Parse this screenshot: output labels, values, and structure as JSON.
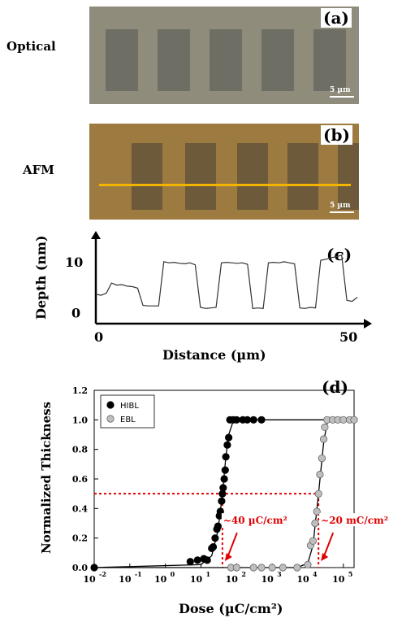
{
  "panels": {
    "a": {
      "tag": "(a)",
      "side_label": "Optical",
      "scale": "5 µm"
    },
    "b": {
      "tag": "(b)",
      "side_label": "AFM",
      "scale": "5 µm"
    },
    "c": {
      "tag": "(c)"
    },
    "d": {
      "tag": "(d)"
    }
  },
  "colors": {
    "optical_bg": "#8f8c7c",
    "optical_square": "#6f6e64",
    "afm_bg": "#9c7a40",
    "afm_square": "#6c5a3a",
    "afm_line": "#f2b400",
    "ebl_red": "#e00000",
    "hibl_fill": "#000000",
    "ebl_fill": "#bfbfbf"
  },
  "chart_data": [
    {
      "type": "line",
      "title": "",
      "xlabel": "Distance (µm)",
      "ylabel": "Depth (nm)",
      "xticks": [
        "0",
        "50"
      ],
      "yticks": [
        "0",
        "10"
      ],
      "xlim": [
        0,
        50
      ],
      "ylim": [
        -2,
        15
      ],
      "x": [
        0,
        1,
        2,
        3,
        4,
        5,
        6,
        7,
        8,
        9,
        10,
        11,
        12,
        13,
        14,
        15,
        16,
        17,
        18,
        19,
        20,
        21,
        22,
        23,
        24,
        25,
        26,
        27,
        28,
        29,
        30,
        31,
        32,
        33,
        34,
        35,
        36,
        37,
        38,
        39,
        40,
        41,
        42,
        43,
        44,
        45,
        46,
        47,
        48,
        49,
        50
      ],
      "series": [
        {
          "values": [
            3.8,
            3.6,
            4.0,
            6.0,
            5.6,
            5.7,
            5.4,
            5.3,
            5.0,
            1.6,
            1.5,
            1.5,
            1.5,
            10.2,
            10.0,
            10.1,
            9.9,
            9.8,
            10.0,
            9.6,
            1.2,
            1.0,
            1.1,
            1.2,
            10.0,
            10.1,
            10.0,
            9.9,
            10.0,
            9.7,
            1.0,
            1.1,
            1.0,
            10.0,
            10.1,
            10.0,
            10.2,
            10.0,
            9.8,
            1.1,
            1.0,
            1.2,
            1.1,
            10.5,
            10.7,
            11.0,
            11.2,
            11.5,
            2.6,
            2.4,
            3.2
          ]
        }
      ]
    },
    {
      "type": "scatter",
      "title": "",
      "xlabel": "Dose (µC/cm²)",
      "ylabel": "Normalized Thickness",
      "x_scale": "log",
      "xlim": [
        0.01,
        200000
      ],
      "ylim": [
        0,
        1.2
      ],
      "xticks": [
        {
          "v": 0.01,
          "b": "10",
          "e": "-2"
        },
        {
          "v": 0.1,
          "b": "10",
          "e": "-1"
        },
        {
          "v": 1,
          "b": "10",
          "e": "0"
        },
        {
          "v": 10,
          "b": "10",
          "e": "1"
        },
        {
          "v": 100,
          "b": "10",
          "e": "2"
        },
        {
          "v": 1000,
          "b": "10",
          "e": "3"
        },
        {
          "v": 10000,
          "b": "10",
          "e": "4"
        },
        {
          "v": 100000,
          "b": "10",
          "e": "5"
        }
      ],
      "yticks": [
        "0.0",
        "0.2",
        "0.4",
        "0.6",
        "0.8",
        "1.0",
        "1.2"
      ],
      "legend_position": "top-left",
      "series": [
        {
          "name": "HIBL",
          "color": "#000000",
          "points": [
            [
              0.01,
              0
            ],
            [
              5,
              0.04
            ],
            [
              8,
              0.05
            ],
            [
              12,
              0.06
            ],
            [
              15,
              0.05
            ],
            [
              20,
              0.13
            ],
            [
              22,
              0.14
            ],
            [
              25,
              0.2
            ],
            [
              28,
              0.26
            ],
            [
              30,
              0.28
            ],
            [
              33,
              0.35
            ],
            [
              35,
              0.38
            ],
            [
              38,
              0.45
            ],
            [
              40,
              0.5
            ],
            [
              42,
              0.54
            ],
            [
              45,
              0.6
            ],
            [
              48,
              0.66
            ],
            [
              50,
              0.75
            ],
            [
              55,
              0.83
            ],
            [
              60,
              0.88
            ],
            [
              65,
              1.0
            ],
            [
              80,
              1.0
            ],
            [
              100,
              1.0
            ],
            [
              150,
              1.0
            ],
            [
              200,
              1.0
            ],
            [
              300,
              1.0
            ],
            [
              500,
              1.0
            ]
          ],
          "fit": [
            [
              0.01,
              0
            ],
            [
              10,
              0.02
            ],
            [
              20,
              0.08
            ],
            [
              30,
              0.25
            ],
            [
              40,
              0.5
            ],
            [
              50,
              0.75
            ],
            [
              60,
              0.9
            ],
            [
              80,
              0.99
            ],
            [
              100,
              1.0
            ],
            [
              200000,
              1.0
            ]
          ]
        },
        {
          "name": "EBL",
          "color": "#bfbfbf",
          "points": [
            [
              70,
              0
            ],
            [
              100,
              0
            ],
            [
              300,
              0
            ],
            [
              500,
              0
            ],
            [
              1000,
              0
            ],
            [
              2000,
              0
            ],
            [
              5000,
              0
            ],
            [
              10000,
              0.02
            ],
            [
              12000,
              0.15
            ],
            [
              14000,
              0.18
            ],
            [
              16000,
              0.3
            ],
            [
              18000,
              0.38
            ],
            [
              20000,
              0.5
            ],
            [
              22000,
              0.63
            ],
            [
              25000,
              0.74
            ],
            [
              28000,
              0.87
            ],
            [
              30000,
              0.95
            ],
            [
              35000,
              1.0
            ],
            [
              50000,
              1.0
            ],
            [
              70000,
              1.0
            ],
            [
              100000,
              1.0
            ],
            [
              150000,
              1.0
            ],
            [
              200000,
              1.0
            ]
          ],
          "fit": [
            [
              0.01,
              0
            ],
            [
              5000,
              0.0
            ],
            [
              10000,
              0.03
            ],
            [
              14000,
              0.15
            ],
            [
              20000,
              0.5
            ],
            [
              28000,
              0.85
            ],
            [
              35000,
              0.98
            ],
            [
              50000,
              1.0
            ],
            [
              200000,
              1.0
            ]
          ]
        }
      ],
      "annotations": [
        {
          "text": "~40 µC/cm²",
          "x": 40,
          "color": "#e00000"
        },
        {
          "text": "~20 mC/cm²",
          "x": 20000,
          "color": "#e00000"
        }
      ],
      "guide_y": 0.5
    }
  ]
}
